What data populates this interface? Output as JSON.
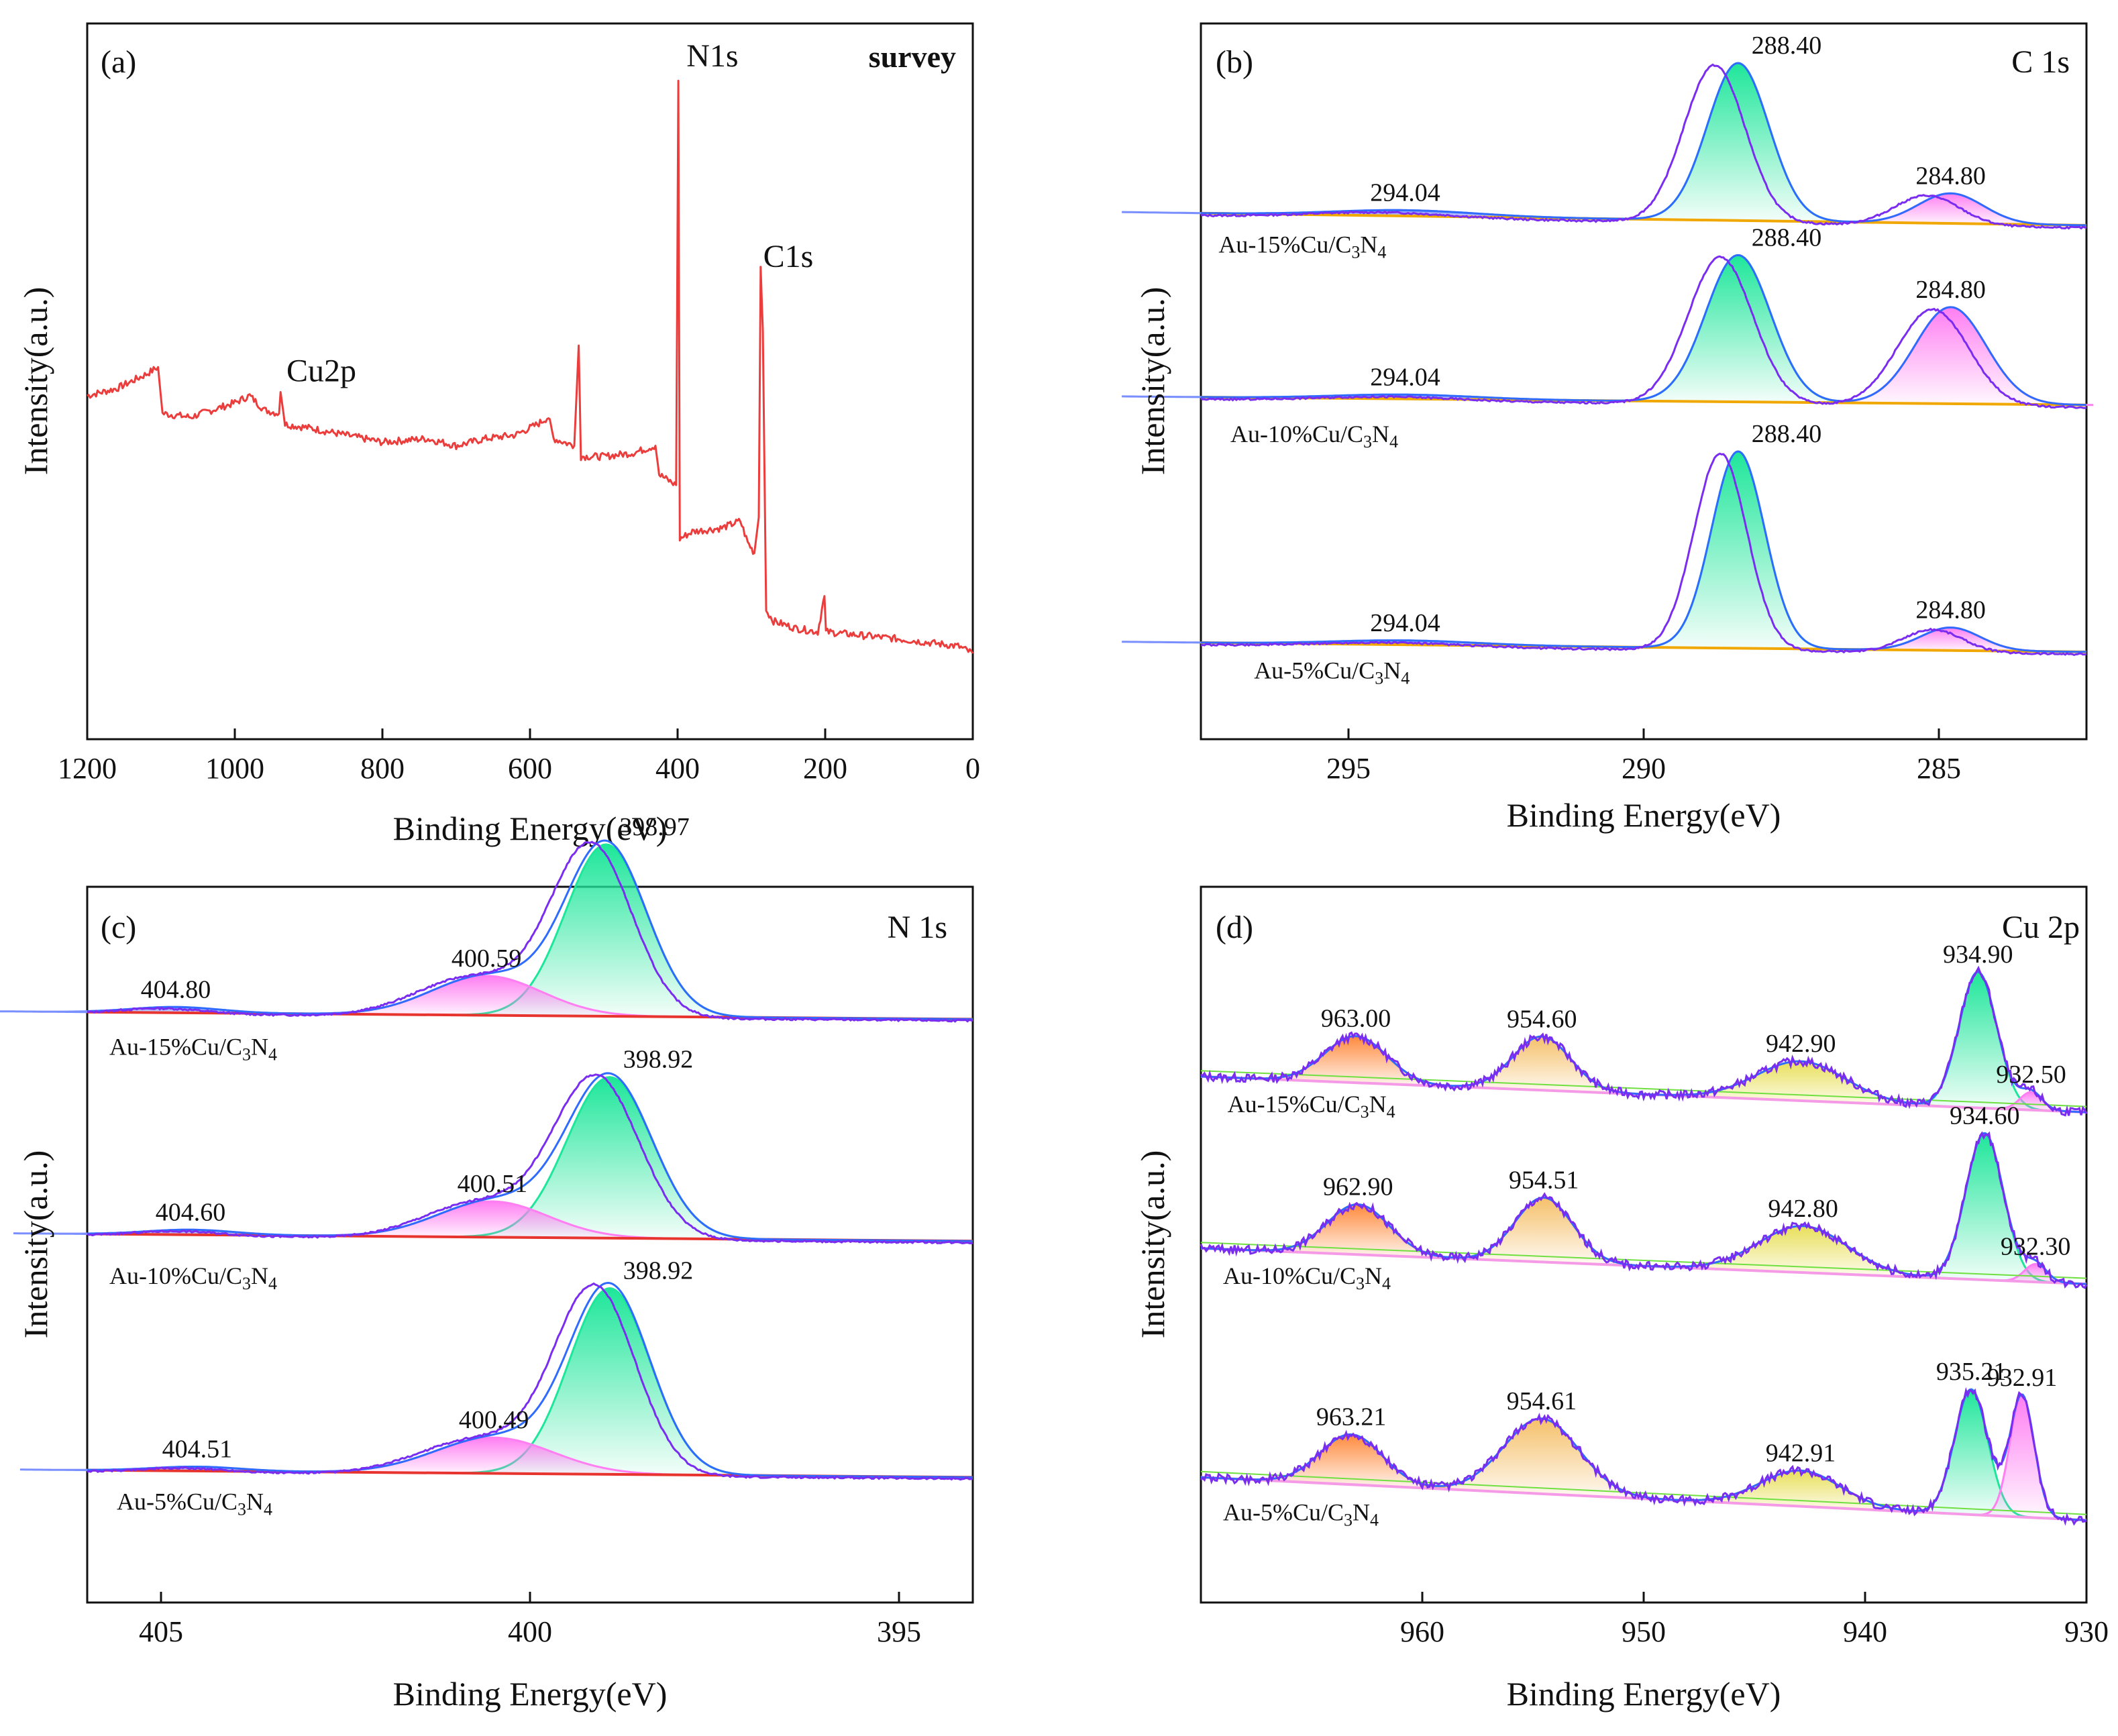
{
  "chart_data": [
    {
      "id": "a",
      "type": "line",
      "panel_label": "(a)",
      "title": "survey",
      "xlabel": "Binding Energy(eV)",
      "ylabel": "Intensity(a.u.)",
      "xlim": [
        1200,
        0
      ],
      "x_reversed": true,
      "ylim": [
        0,
        100
      ],
      "xticks": [
        1200,
        1000,
        800,
        600,
        400,
        200,
        0
      ],
      "xtick_labels": [
        "1200",
        "1000",
        "800",
        "600",
        "400",
        "200",
        "0"
      ],
      "series": [
        {
          "name": "survey",
          "color": "#ec3d3d",
          "points": [
            [
              1200,
              48
            ],
            [
              1160,
              49
            ],
            [
              1120,
              51
            ],
            [
              1104,
              52
            ],
            [
              1098,
              45.5
            ],
            [
              1060,
              45
            ],
            [
              1000,
              47
            ],
            [
              980,
              48
            ],
            [
              960,
              46
            ],
            [
              940,
              45.5
            ],
            [
              938,
              48.5
            ],
            [
              932,
              44
            ],
            [
              900,
              43.5
            ],
            [
              850,
              42.5
            ],
            [
              800,
              41.5
            ],
            [
              740,
              42
            ],
            [
              700,
              41
            ],
            [
              660,
              42
            ],
            [
              620,
              42.5
            ],
            [
              590,
              44
            ],
            [
              575,
              45
            ],
            [
              568,
              42
            ],
            [
              540,
              41
            ],
            [
              534,
              55
            ],
            [
              531,
              39.5
            ],
            [
              500,
              39.5
            ],
            [
              460,
              40
            ],
            [
              430,
              41
            ],
            [
              425,
              37
            ],
            [
              410,
              36
            ],
            [
              402,
              35.5
            ],
            [
              399,
              92
            ],
            [
              397,
              28
            ],
            [
              380,
              29
            ],
            [
              340,
              29.5
            ],
            [
              315,
              30.5
            ],
            [
              305,
              27.5
            ],
            [
              296,
              26
            ],
            [
              290,
              31
            ],
            [
              287.5,
              66
            ],
            [
              284.5,
              57
            ],
            [
              280,
              18
            ],
            [
              270,
              16.5
            ],
            [
              240,
              15.5
            ],
            [
              210,
              15
            ],
            [
              201,
              20
            ],
            [
              199,
              15
            ],
            [
              150,
              14.5
            ],
            [
              100,
              14
            ],
            [
              60,
              13.5
            ],
            [
              20,
              13
            ],
            [
              0,
              12
            ]
          ]
        }
      ],
      "peak_labels": [
        {
          "text": "Cu2p",
          "x": 930,
          "y": 50
        },
        {
          "text": "N1s",
          "x": 388,
          "y": 94
        },
        {
          "text": "C1s",
          "x": 284,
          "y": 66
        }
      ]
    },
    {
      "id": "b",
      "type": "line",
      "panel_label": "(b)",
      "title": "C 1s",
      "xlabel": "Binding Energy(eV)",
      "ylabel": "Intensity(a.u.)",
      "xlim": [
        297.5,
        282.5
      ],
      "x_reversed": true,
      "ylim": [
        0,
        100
      ],
      "xticks": [
        295,
        290,
        285
      ],
      "xtick_labels": [
        "295",
        "290",
        "285"
      ],
      "samples": [
        {
          "name": "Au-15%Cu/C3N4",
          "label_main": "Au-15%Cu/C",
          "label_sub1": "3",
          "label_mid": "N",
          "label_sub2": "4",
          "label_pos": [
            297.2,
            68
          ],
          "baseline": 73.5,
          "baseline_end": 71.8,
          "envelope_offset": [
            0.4,
            -0.3
          ],
          "peaks": [
            {
              "center": 288.4,
              "height": 22,
              "sigma": 0.52,
              "color": "#1ee69a",
              "label": "288.40"
            },
            {
              "center": 284.8,
              "height": 4.2,
              "sigma": 0.55,
              "color": "#ff7ef2",
              "label": "284.80"
            },
            {
              "center": 294.04,
              "height": 0.8,
              "sigma": 1.2,
              "color": "#7a8fff",
              "label": "294.04"
            }
          ]
        },
        {
          "name": "Au-10%Cu/C3N4",
          "label_main": "Au-10%Cu/C",
          "label_sub1": "3",
          "label_mid": "N",
          "label_sub2": "4",
          "label_pos": [
            297.0,
            41.5
          ],
          "baseline": 47.8,
          "baseline_end": 46.7,
          "envelope_offset": [
            0.3,
            -0.3
          ],
          "peaks": [
            {
              "center": 288.4,
              "height": 20.5,
              "sigma": 0.55,
              "color": "#1ee69a",
              "label": "288.40"
            },
            {
              "center": 284.8,
              "height": 13.5,
              "sigma": 0.6,
              "color": "#ff7ef2",
              "label": "284.80"
            },
            {
              "center": 294.04,
              "height": 0.6,
              "sigma": 1.2,
              "color": "#7a8fff",
              "label": "294.04"
            }
          ]
        },
        {
          "name": "Au-5%Cu/C3N4",
          "label_main": "Au-5%Cu/C",
          "label_sub1": "3",
          "label_mid": "N",
          "label_sub2": "4",
          "label_pos": [
            296.6,
            8.5
          ],
          "baseline": 13.5,
          "baseline_end": 12.2,
          "envelope_offset": [
            0.3,
            -0.3
          ],
          "peaks": [
            {
              "center": 288.4,
              "height": 27.5,
              "sigma": 0.45,
              "color": "#1ee69a",
              "label": "288.40"
            },
            {
              "center": 284.8,
              "height": 3.2,
              "sigma": 0.5,
              "color": "#ff7ef2",
              "label": "284.80"
            },
            {
              "center": 294.04,
              "height": 0.6,
              "sigma": 1.2,
              "color": "#7a8fff",
              "label": "294.04"
            }
          ]
        }
      ]
    },
    {
      "id": "c",
      "type": "line",
      "panel_label": "(c)",
      "title": "N 1s",
      "xlabel": "Binding Energy(eV)",
      "ylabel": "Intensity(a.u.)",
      "xlim": [
        406,
        394
      ],
      "x_reversed": true,
      "ylim": [
        0,
        100
      ],
      "xticks": [
        405,
        400,
        395
      ],
      "xtick_labels": [
        "405",
        "400",
        "395"
      ],
      "samples": [
        {
          "name": "Au-15%Cu/C3N4",
          "label_main": "Au-15%Cu/C",
          "label_sub1": "3",
          "label_mid": "N",
          "label_sub2": "4",
          "label_pos": [
            405.7,
            76.5
          ],
          "baseline": 82.5,
          "baseline_end": 81.5,
          "envelope_offset": [
            0.2,
            -0.2
          ],
          "peaks": [
            {
              "center": 398.97,
              "height": 24,
              "sigma": 0.55,
              "color": "#1ee69a",
              "label": "398.97"
            },
            {
              "center": 400.59,
              "height": 5.5,
              "sigma": 0.75,
              "color": "#ff7ef2",
              "label": "400.59"
            },
            {
              "center": 404.8,
              "height": 0.8,
              "sigma": 0.6,
              "color": "#7a8fff",
              "label": "404.80"
            }
          ]
        },
        {
          "name": "Au-10%Cu/C3N4",
          "label_main": "Au-10%Cu/C",
          "label_sub1": "3",
          "label_mid": "N",
          "label_sub2": "4",
          "label_pos": [
            405.7,
            44.5
          ],
          "baseline": 51.5,
          "baseline_end": 50.5,
          "envelope_offset": [
            0.18,
            -0.2
          ],
          "peaks": [
            {
              "center": 398.92,
              "height": 22.5,
              "sigma": 0.58,
              "color": "#1ee69a",
              "label": "398.92"
            },
            {
              "center": 400.51,
              "height": 5,
              "sigma": 0.75,
              "color": "#ff7ef2",
              "label": "400.51"
            },
            {
              "center": 404.6,
              "height": 0.7,
              "sigma": 0.6,
              "color": "#7a8fff",
              "label": "404.60"
            }
          ]
        },
        {
          "name": "Au-5%Cu/C3N4",
          "label_main": "Au-5%Cu/C",
          "label_sub1": "3",
          "label_mid": "N",
          "label_sub2": "4",
          "label_pos": [
            405.6,
            13
          ],
          "baseline": 18.5,
          "baseline_end": 17.5,
          "envelope_offset": [
            0.2,
            -0.2
          ],
          "peaks": [
            {
              "center": 398.92,
              "height": 26,
              "sigma": 0.55,
              "color": "#1ee69a",
              "label": "398.92"
            },
            {
              "center": 400.49,
              "height": 5,
              "sigma": 0.8,
              "color": "#ff7ef2",
              "label": "400.49"
            },
            {
              "center": 404.51,
              "height": 0.6,
              "sigma": 0.6,
              "color": "#7a8fff",
              "label": "404.51"
            }
          ]
        }
      ]
    },
    {
      "id": "d",
      "type": "line",
      "panel_label": "(d)",
      "title": "Cu 2p",
      "xlabel": "Binding Energy(eV)",
      "ylabel": "Intensity(a.u.)",
      "xlim": [
        970,
        930
      ],
      "x_reversed": true,
      "ylim": [
        0,
        100
      ],
      "xticks": [
        960,
        950,
        940,
        930
      ],
      "xtick_labels": [
        "960",
        "950",
        "940",
        "930"
      ],
      "samples": [
        {
          "name": "Au-15%Cu/C3N4",
          "label_main": "Au-15%Cu/C",
          "label_sub1": "3",
          "label_mid": "N",
          "label_sub2": "4",
          "label_pos": [
            968.8,
            68.5
          ],
          "baseline": 73.5,
          "baseline_end": 68.5,
          "envelope_offset": [
            0,
            0
          ],
          "peaks": [
            {
              "center": 963.0,
              "height": 6.5,
              "sigma": 1.4,
              "color": "#ff8a3d",
              "label": "963.00"
            },
            {
              "center": 954.6,
              "height": 7.5,
              "sigma": 1.3,
              "color": "#f5c06a",
              "label": "954.60"
            },
            {
              "center": 942.9,
              "height": 5.5,
              "sigma": 2.0,
              "color": "#e8df5a",
              "label": "942.90"
            },
            {
              "center": 934.9,
              "height": 19,
              "sigma": 0.85,
              "color": "#1ee69a",
              "label": "934.90"
            },
            {
              "center": 932.5,
              "height": 2.5,
              "sigma": 0.5,
              "color": "#ff7ef2",
              "label": "932.50"
            }
          ]
        },
        {
          "name": "Au-10%Cu/C3N4",
          "label_main": "Au-10%Cu/C",
          "label_sub1": "3",
          "label_mid": "N",
          "label_sub2": "4",
          "label_pos": [
            969.0,
            44.5
          ],
          "baseline": 49.5,
          "baseline_end": 44.5,
          "envelope_offset": [
            0,
            0
          ],
          "peaks": [
            {
              "center": 962.9,
              "height": 7,
              "sigma": 1.4,
              "color": "#ff8a3d",
              "label": "962.90"
            },
            {
              "center": 954.51,
              "height": 9,
              "sigma": 1.3,
              "color": "#f5c06a",
              "label": "954.51"
            },
            {
              "center": 942.8,
              "height": 6.5,
              "sigma": 2.0,
              "color": "#e8df5a",
              "label": "942.80"
            },
            {
              "center": 934.6,
              "height": 20.5,
              "sigma": 0.85,
              "color": "#1ee69a",
              "label": "934.60"
            },
            {
              "center": 932.3,
              "height": 2.5,
              "sigma": 0.5,
              "color": "#ff7ef2",
              "label": "932.30"
            }
          ]
        },
        {
          "name": "Au-5%Cu/C3N4",
          "label_main": "Au-5%Cu/C",
          "label_sub1": "3",
          "label_mid": "N",
          "label_sub2": "4",
          "label_pos": [
            969.0,
            11.5
          ],
          "baseline": 17.5,
          "baseline_end": 11.5,
          "envelope_offset": [
            0,
            0
          ],
          "peaks": [
            {
              "center": 963.21,
              "height": 7,
              "sigma": 1.4,
              "color": "#ff8a3d",
              "label": "963.21"
            },
            {
              "center": 954.61,
              "height": 10.5,
              "sigma": 1.7,
              "color": "#f5c06a",
              "label": "954.61"
            },
            {
              "center": 942.91,
              "height": 5,
              "sigma": 1.8,
              "color": "#e8df5a",
              "label": "942.91"
            },
            {
              "center": 935.21,
              "height": 17.5,
              "sigma": 0.75,
              "color": "#1ee69a",
              "label": "935.21"
            },
            {
              "center": 932.91,
              "height": 17,
              "sigma": 0.55,
              "color": "#ff7ef2",
              "label": "932.91"
            }
          ]
        }
      ]
    }
  ],
  "colors": {
    "envelope": "#7a2cf0",
    "fit": "#2f6bff",
    "baseline_b": "#f0a800",
    "baseline_c": "#e8342e",
    "baseline_d": "#f59ae6",
    "baseline_d2": "#6fe040"
  }
}
